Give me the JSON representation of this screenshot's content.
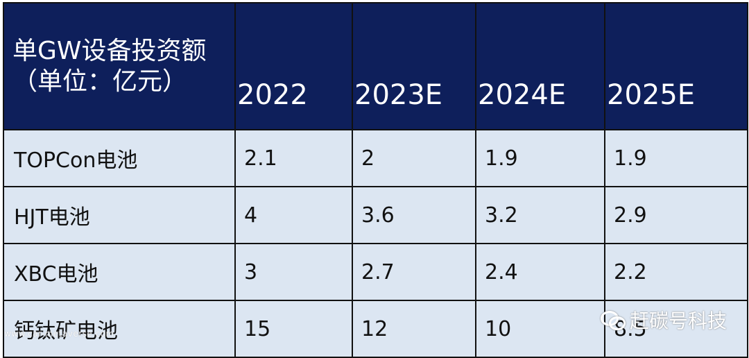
{
  "table": {
    "corner_label": "单GW设备投资额（单位：亿元）",
    "years": [
      "2022",
      "2023E",
      "2024E",
      "2025E"
    ],
    "rows": [
      {
        "label": "TOPCon电池",
        "values": [
          "2.1",
          "2",
          "1.9",
          "1.9"
        ]
      },
      {
        "label": "HJT电池",
        "values": [
          "4",
          "3.6",
          "3.2",
          "2.9"
        ]
      },
      {
        "label": "XBC电池",
        "values": [
          "3",
          "2.7",
          "2.4",
          "2.2"
        ]
      },
      {
        "label": "钙钛矿电池",
        "values": [
          "15",
          "12",
          "10",
          "8.5"
        ]
      }
    ]
  },
  "colors": {
    "header_bg": "#0e1f5b",
    "header_text": "#ffffff",
    "body_bg": "#dce6f2",
    "border": "#111111"
  },
  "watermarks": {
    "left": "www.car-metaverse.com",
    "right": "赶碳号科技",
    "right_icon": "wechat-icon"
  }
}
